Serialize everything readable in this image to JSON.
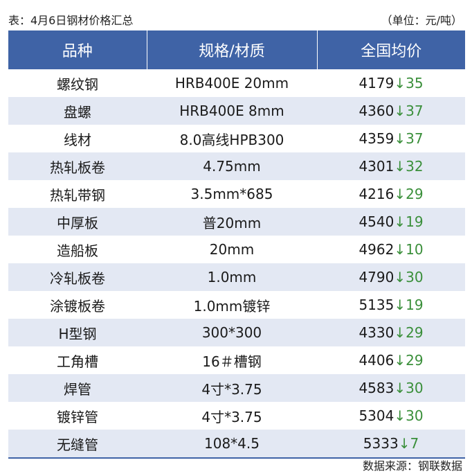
{
  "caption": "表：4月6日钢材价格汇总",
  "unit": "（单位：元/吨）",
  "headers": [
    "品种",
    "规格/材质",
    "全国均价"
  ],
  "rows": [
    {
      "name": "螺纹钢",
      "spec": "HRB400E 20mm",
      "price": "4179",
      "arrow": "↓",
      "change": "35"
    },
    {
      "name": "盘螺",
      "spec": "HRB400E 8mm",
      "price": "4360",
      "arrow": "↓",
      "change": "37"
    },
    {
      "name": "线材",
      "spec": "8.0高线HPB300",
      "price": "4359",
      "arrow": "↓",
      "change": "37"
    },
    {
      "name": "热轧板卷",
      "spec": "4.75mm",
      "price": "4301",
      "arrow": "↓",
      "change": "32"
    },
    {
      "name": "热轧带钢",
      "spec": "3.5mm*685",
      "price": "4216",
      "arrow": "↓",
      "change": "29"
    },
    {
      "name": "中厚板",
      "spec": "普20mm",
      "price": "4540",
      "arrow": "↓",
      "change": "19"
    },
    {
      "name": "造船板",
      "spec": "20mm",
      "price": "4962",
      "arrow": "↓",
      "change": "10"
    },
    {
      "name": "冷轧板卷",
      "spec": "1.0mm",
      "price": "4790",
      "arrow": "↓",
      "change": "30"
    },
    {
      "name": "涂镀板卷",
      "spec": "1.0mm镀锌",
      "price": "5135",
      "arrow": "↓",
      "change": "19"
    },
    {
      "name": "H型钢",
      "spec": "300*300",
      "price": "4330",
      "arrow": "↓",
      "change": "29"
    },
    {
      "name": "工角槽",
      "spec": "16＃槽钢",
      "price": "4406",
      "arrow": "↓",
      "change": "29"
    },
    {
      "name": "焊管",
      "spec": "4寸*3.75",
      "price": "4583",
      "arrow": "↓",
      "change": "30"
    },
    {
      "name": "镀锌管",
      "spec": "4寸*3.75",
      "price": "5304",
      "arrow": "↓",
      "change": "30"
    },
    {
      "name": "无缝管",
      "spec": "108*4.5",
      "price": "5333",
      "arrow": "↓",
      "change": "7"
    }
  ],
  "source": "数据来源：钢联数据",
  "colors": {
    "header_bg": "#3f63a6",
    "stripe": "#e3e8f3",
    "down": "#3a8f3a"
  }
}
